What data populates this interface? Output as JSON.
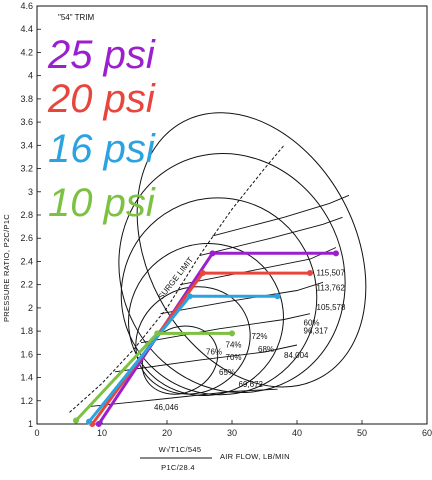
{
  "chart_data": {
    "type": "line",
    "title": "\"54\" TRIM",
    "xlabel": "AIR FLOW, LB/MIN",
    "xlabel_formula_top": "W√T1C/545",
    "xlabel_formula_bottom": "P1C/28.4",
    "ylabel": "PRESSURE RATIO, P2C/P1C",
    "xlim": [
      0,
      60
    ],
    "ylim": [
      1,
      4.6
    ],
    "x_ticks": [
      "0",
      "10",
      "20",
      "30",
      "40",
      "50",
      "60"
    ],
    "y_ticks": [
      "1",
      "1.2",
      "1.4",
      "1.6",
      "1.8",
      "2",
      "2.2",
      "2.4",
      "2.6",
      "2.8",
      "3",
      "3.2",
      "3.4",
      "3.6",
      "3.8",
      "4",
      "4.2",
      "4.4",
      "4.6"
    ],
    "grid": false,
    "surge_limit_label": "SURGE LIMIT",
    "efficiency_labels": [
      "72%",
      "74%",
      "76%",
      "70%",
      "68%",
      "65%",
      "60%"
    ],
    "speed_line_labels": [
      "115,507",
      "113,762",
      "105,578",
      "96,317",
      "84,004",
      "69,672",
      "46,046"
    ],
    "series": [
      {
        "name": "25 psi",
        "color": "#9b1fcf",
        "x": [
          9.5,
          27,
          46
        ],
        "y": [
          1.0,
          2.47,
          2.47
        ]
      },
      {
        "name": "20 psi",
        "color": "#e8453c",
        "x": [
          8.5,
          25.5,
          42
        ],
        "y": [
          1.0,
          2.3,
          2.3
        ]
      },
      {
        "name": "16 psi",
        "color": "#2aa3e0",
        "x": [
          8.0,
          23.5,
          37
        ],
        "y": [
          1.02,
          2.1,
          2.1
        ]
      },
      {
        "name": "10 psi",
        "color": "#7cc142",
        "x": [
          6.0,
          18.5,
          30
        ],
        "y": [
          1.03,
          1.78,
          1.78
        ]
      }
    ],
    "legend_placement": "top-left"
  }
}
